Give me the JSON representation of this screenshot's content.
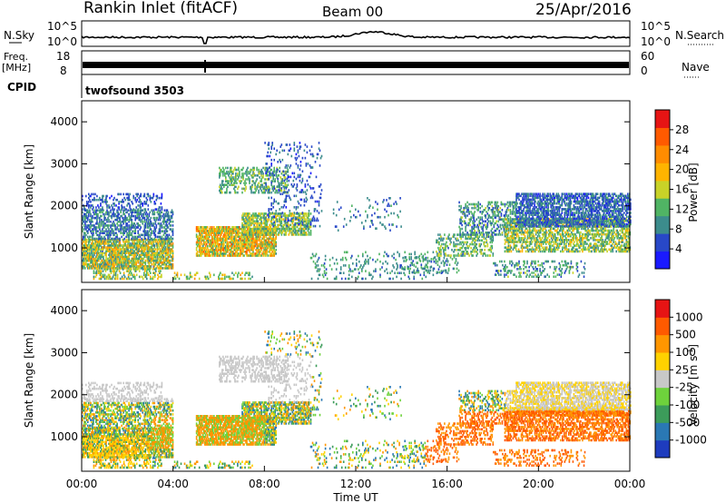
{
  "header": {
    "station": "Rankin Inlet (fitACF)",
    "beam": "Beam 00",
    "date": "25/Apr/2016"
  },
  "top_panels": {
    "nsky_label": "N.Sky",
    "nsky_ticks": [
      "10^5",
      "10^0"
    ],
    "nsearch_label": "N.Search",
    "nsearch_ticks": [
      "10^5",
      "10^0"
    ],
    "freq_label": "Freq.",
    "freq_unit": "[MHz]",
    "freq_ticks": [
      "18",
      "8"
    ],
    "nave_label": "Nave",
    "nave_ticks": [
      "60",
      "0"
    ],
    "cpid_label": "CPID",
    "cpid_value": "twofsound 3503"
  },
  "chart_data": [
    {
      "type": "heatmap",
      "name": "power",
      "ylabel": "Slant Range [km]",
      "ylim": [
        180,
        4500
      ],
      "yticks": [
        1000,
        2000,
        3000,
        4000
      ],
      "xlim_hours": [
        0,
        24
      ],
      "colorbar": {
        "label": "Power [dB]",
        "ticks": [
          "4",
          "8",
          "12",
          "16",
          "20",
          "24",
          "28"
        ],
        "range": [
          0,
          32
        ],
        "colors": [
          "#1a1aff",
          "#2848c8",
          "#3c8c8c",
          "#50b464",
          "#c8d228",
          "#ffb400",
          "#ff8c00",
          "#ff5a00",
          "#e61414"
        ]
      }
    },
    {
      "type": "heatmap",
      "name": "velocity",
      "ylabel": "Slant Range [km]",
      "ylim": [
        180,
        4500
      ],
      "yticks": [
        1000,
        2000,
        3000,
        4000
      ],
      "xlim_hours": [
        0,
        24
      ],
      "xlabel": "Time UT",
      "xticks": [
        "00:00",
        "04:00",
        "08:00",
        "12:00",
        "16:00",
        "20:00",
        "00:00"
      ],
      "colorbar": {
        "label": "Velocity [m s",
        "label_sup": "-1",
        "label_end": "]",
        "ticks": [
          "1000",
          "500",
          "100",
          "25",
          "-25",
          "-100",
          "-500",
          "-1000"
        ],
        "colors": [
          "#1e3cbe",
          "#2a78b4",
          "#3c9c5a",
          "#6ed23c",
          "#c8c8c8",
          "#ffd200",
          "#ff9600",
          "#ff5a00",
          "#e61414"
        ]
      }
    }
  ]
}
